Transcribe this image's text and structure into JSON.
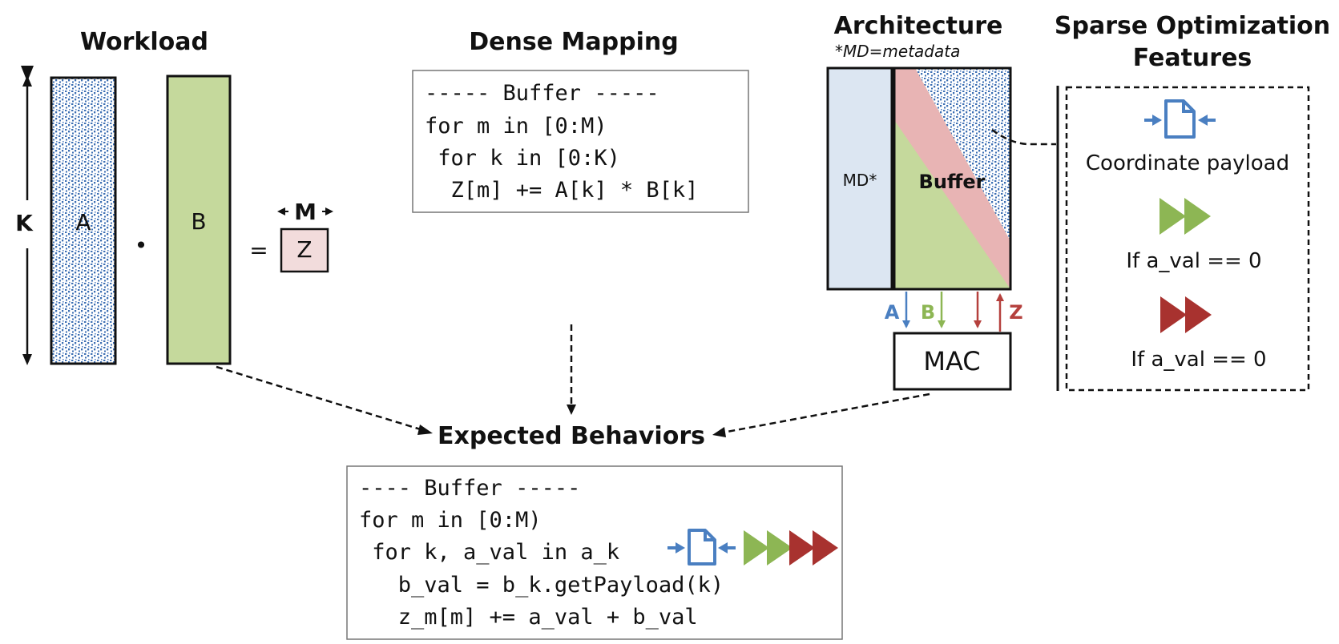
{
  "workload": {
    "title": "Workload",
    "k_label": "K",
    "matrix_a": "A",
    "dot": "•",
    "matrix_b": "B",
    "equals": "=",
    "m_label": "M",
    "matrix_z": "Z"
  },
  "dense_mapping": {
    "title": "Dense Mapping",
    "lines": [
      "----- Buffer -----",
      "for m in [0:M)",
      " for k in [0:K)",
      "  Z[m] += A[k] * B[k]"
    ]
  },
  "architecture": {
    "title": "Architecture",
    "note": "*MD=metadata",
    "md_label": "MD*",
    "buffer_label": "Buffer",
    "mac_label": "MAC",
    "arrows": {
      "a": "A",
      "b": "B",
      "z": "Z"
    }
  },
  "features": {
    "title_line1": "Sparse Optimization",
    "title_line2": "Features",
    "items": [
      {
        "icon": "coordinate-payload-icon",
        "label": "Coordinate payload"
      },
      {
        "icon": "green-skip-icon",
        "label": "If a_val == 0"
      },
      {
        "icon": "red-skip-icon",
        "label": "If a_val == 0"
      }
    ]
  },
  "expected": {
    "title": "Expected Behaviors",
    "lines": [
      "---- Buffer -----",
      "for m in [0:M)",
      " for k, a_val in a_k",
      "   b_val = b_k.getPayload(k)",
      "   z_m[m] += a_val + b_val"
    ]
  },
  "colors": {
    "blue": "#4a7fc1",
    "green": "#8db654",
    "red": "#a8322f",
    "light_green": "#c5d99c",
    "light_blue": "#dce6f2",
    "light_pink": "#f2dcdc",
    "pink": "#e8b4b4"
  }
}
